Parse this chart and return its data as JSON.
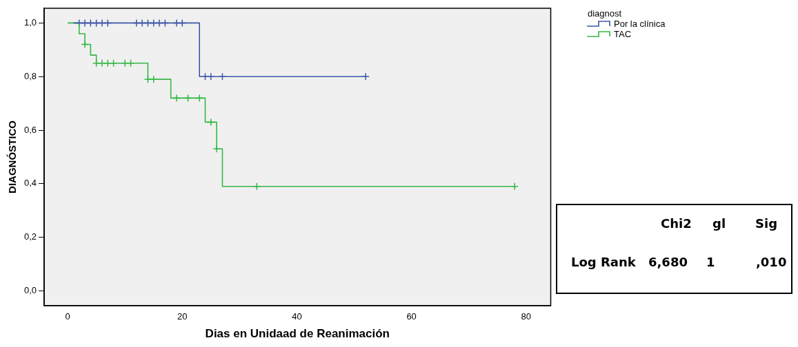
{
  "chart_data": {
    "type": "step",
    "xlabel": "Dias en Unidaad de Reanimación",
    "ylabel": "DIAGNÓSTICO",
    "legend_title": "diagnost",
    "legend": "top right",
    "marker": "none",
    "xlim": [
      -4.1,
      84.3
    ],
    "xticks": [
      0,
      20,
      40,
      60,
      80
    ],
    "ylim": [
      -0.055,
      1.055
    ],
    "yticks": [
      {
        "value": 0,
        "label": "0,0"
      },
      {
        "value": 0.2,
        "label": "0,2"
      },
      {
        "value": 0.4,
        "label": "0,4"
      },
      {
        "value": 0.6,
        "label": "0,6"
      },
      {
        "value": 0.8,
        "label": "0,8"
      },
      {
        "value": 1,
        "label": "1,0"
      }
    ],
    "annotations": [
      "Chi2",
      "gl",
      "Sig",
      "Log Rank",
      "6,680",
      "1",
      ",010"
    ],
    "series": [
      {
        "name": "Por la clínica",
        "color": "#3c56a8",
        "x": [
          1,
          23,
          52
        ],
        "values": [
          1,
          0.8,
          0.8
        ]
      },
      {
        "name": "TAC",
        "color": "#34b844",
        "x": [
          0,
          2,
          3,
          4,
          5,
          14,
          18,
          24,
          26,
          27,
          78
        ],
        "values": [
          1,
          0.96,
          0.92,
          0.88,
          0.85,
          0.79,
          0.72,
          0.63,
          0.53,
          0.39,
          0.39
        ]
      },
      {
        "type": "scatter",
        "marker": "cross",
        "color": "#3c56a8",
        "x": [
          2,
          3,
          4,
          5,
          6,
          7,
          12,
          13,
          14,
          15,
          16,
          17,
          19,
          20,
          24,
          25,
          27,
          52
        ],
        "values": [
          1,
          1,
          1,
          1,
          1,
          1,
          1,
          1,
          1,
          1,
          1,
          1,
          1,
          1,
          0.8,
          0.8,
          0.8,
          0.8
        ]
      },
      {
        "type": "scatter",
        "marker": "cross",
        "color": "#34b844",
        "x": [
          3,
          5,
          6,
          7,
          8,
          10,
          11,
          14,
          15,
          19,
          21,
          23,
          25,
          26,
          33,
          78
        ],
        "values": [
          0.92,
          0.85,
          0.85,
          0.85,
          0.85,
          0.85,
          0.85,
          0.79,
          0.79,
          0.72,
          0.72,
          0.72,
          0.63,
          0.53,
          0.39,
          0.39
        ]
      }
    ]
  }
}
